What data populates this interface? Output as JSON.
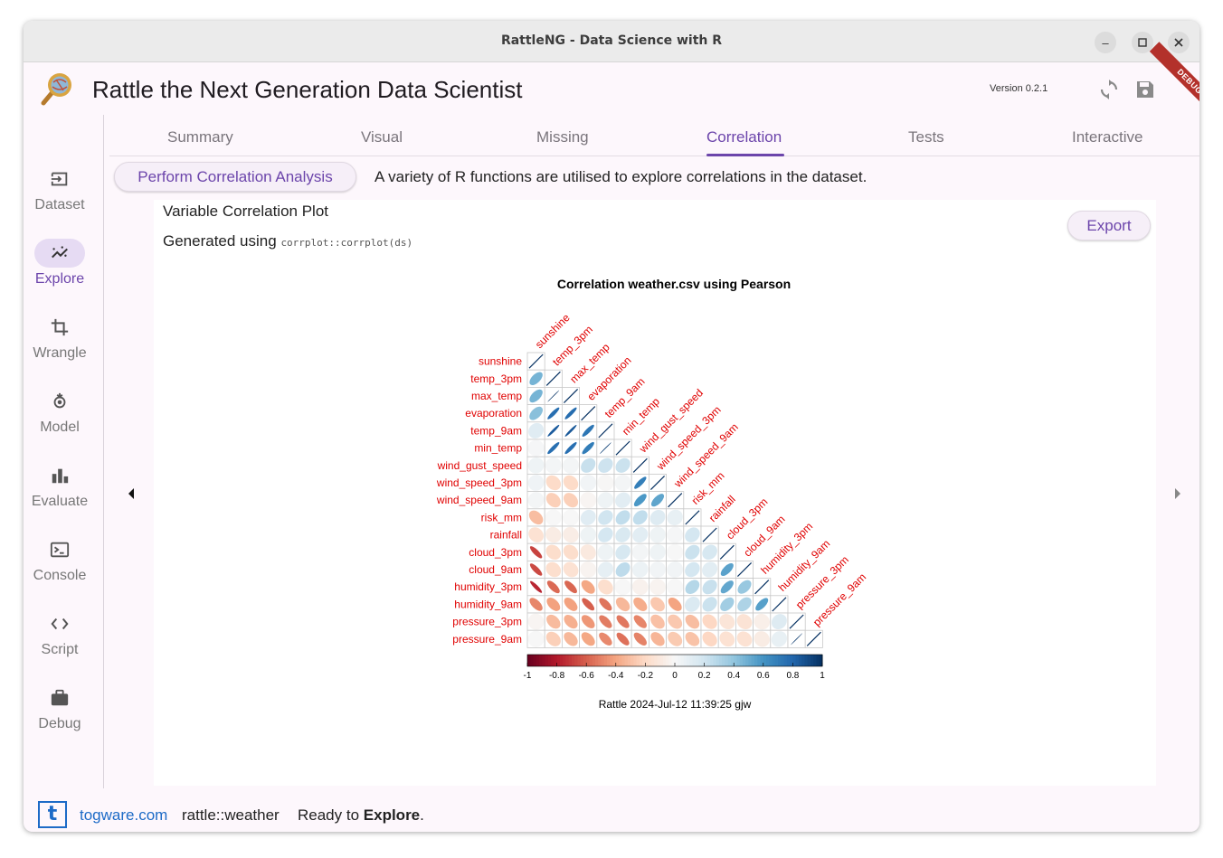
{
  "window": {
    "title": "RattleNG - Data Science with R"
  },
  "app": {
    "title": "Rattle the Next Generation Data Scientist",
    "version": "Version 0.2.1",
    "debug_banner": "DEBUG"
  },
  "sidebar": {
    "items": [
      {
        "label": "Dataset",
        "icon": "dataset-icon"
      },
      {
        "label": "Explore",
        "icon": "explore-icon",
        "active": true
      },
      {
        "label": "Wrangle",
        "icon": "crop-icon"
      },
      {
        "label": "Model",
        "icon": "model-icon"
      },
      {
        "label": "Evaluate",
        "icon": "bar-chart-icon"
      },
      {
        "label": "Console",
        "icon": "terminal-icon"
      },
      {
        "label": "Script",
        "icon": "code-icon"
      },
      {
        "label": "Debug",
        "icon": "briefcase-icon"
      }
    ]
  },
  "tabs": [
    {
      "label": "Summary"
    },
    {
      "label": "Visual"
    },
    {
      "label": "Missing"
    },
    {
      "label": "Correlation",
      "active": true
    },
    {
      "label": "Tests"
    },
    {
      "label": "Interactive"
    }
  ],
  "action": {
    "button_label": "Perform Correlation Analysis",
    "description": "A variety of R functions are utilised to explore correlations in the dataset."
  },
  "panel": {
    "title": "Variable Correlation Plot",
    "generated_prefix": "Generated using",
    "generated_code": "corrplot::corrplot(ds)",
    "export_label": "Export"
  },
  "chart_data": {
    "type": "heatmap",
    "title": "Correlation weather.csv using Pearson",
    "footer": "Rattle 2024-Jul-12 11:39:25 gjw",
    "variables": [
      "sunshine",
      "temp_3pm",
      "max_temp",
      "evaporation",
      "temp_9am",
      "min_temp",
      "wind_gust_speed",
      "wind_speed_3pm",
      "wind_speed_9am",
      "risk_mm",
      "rainfall",
      "cloud_3pm",
      "cloud_9am",
      "humidity_3pm",
      "humidity_9am",
      "pressure_3pm",
      "pressure_9am"
    ],
    "matrix": [
      [
        1
      ],
      [
        0.47,
        1
      ],
      [
        0.47,
        0.99,
        1
      ],
      [
        0.42,
        0.76,
        0.77,
        1
      ],
      [
        0.12,
        0.84,
        0.85,
        0.73,
        1
      ],
      [
        0.01,
        0.76,
        0.76,
        0.7,
        0.95,
        1
      ],
      [
        0.05,
        0.02,
        0.02,
        0.23,
        0.21,
        0.22,
        1
      ],
      [
        0.04,
        -0.19,
        -0.19,
        0.03,
        -0.01,
        0.02,
        0.69,
        1
      ],
      [
        0.02,
        -0.24,
        -0.24,
        -0.02,
        0.05,
        0.11,
        0.58,
        0.53,
        1
      ],
      [
        -0.31,
        0.0,
        0.0,
        0.12,
        0.2,
        0.25,
        0.25,
        0.13,
        0.08,
        1
      ],
      [
        -0.15,
        -0.08,
        -0.07,
        0.05,
        0.18,
        0.16,
        0.11,
        0.05,
        0.01,
        0.18,
        1
      ],
      [
        -0.68,
        -0.18,
        -0.18,
        -0.1,
        0.05,
        0.17,
        0.02,
        0.05,
        0.0,
        0.22,
        0.17,
        1
      ],
      [
        -0.66,
        -0.17,
        -0.15,
        -0.03,
        0.09,
        0.26,
        0.06,
        0.03,
        0.03,
        0.18,
        0.11,
        0.54,
        1
      ],
      [
        -0.76,
        -0.57,
        -0.58,
        -0.39,
        -0.17,
        0.0,
        -0.04,
        -0.03,
        0.0,
        0.29,
        0.23,
        0.52,
        0.38,
        1
      ],
      [
        -0.49,
        -0.41,
        -0.41,
        -0.6,
        -0.54,
        -0.33,
        -0.37,
        -0.27,
        -0.4,
        0.15,
        0.22,
        0.35,
        0.31,
        0.55,
        1
      ],
      [
        -0.02,
        -0.32,
        -0.36,
        -0.44,
        -0.52,
        -0.53,
        -0.49,
        -0.3,
        -0.27,
        -0.31,
        -0.21,
        -0.13,
        -0.14,
        -0.06,
        0.13,
        1
      ],
      [
        0.0,
        -0.24,
        -0.33,
        -0.39,
        -0.48,
        -0.55,
        -0.5,
        -0.34,
        -0.26,
        -0.29,
        -0.21,
        -0.15,
        -0.15,
        -0.08,
        0.08,
        0.97,
        1
      ]
    ],
    "colorbar_ticks": [
      "-1",
      "-0.8",
      "-0.6",
      "-0.4",
      "-0.2",
      "0",
      "0.2",
      "0.4",
      "0.6",
      "0.8",
      "1"
    ],
    "colors": {
      "negative": "#67001f",
      "neutral": "#f7f7f7",
      "positive": "#053061",
      "label": "#e00000"
    }
  },
  "status": {
    "link": "togware.com",
    "dataset": "rattle::weather",
    "message_prefix": "Ready to",
    "message_bold": "Explore",
    "message_suffix": "."
  }
}
